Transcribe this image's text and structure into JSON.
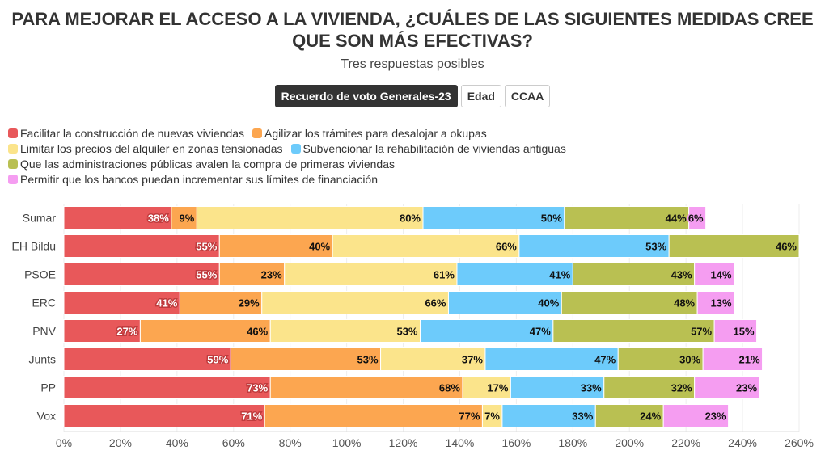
{
  "title_line1": "PARA MEJORAR EL ACCESO A LA VIVIENDA, ¿CUÁLES DE LAS SIGUIENTES MEDIDAS CREE",
  "title_line2": "QUE SON MÁS EFECTIVAS?",
  "subtitle": "Tres respuestas posibles",
  "buttons": [
    {
      "label": "Recuerdo de voto Generales-23",
      "active": true
    },
    {
      "label": "Edad",
      "active": false
    },
    {
      "label": "CCAA",
      "active": false
    }
  ],
  "chart_data": {
    "type": "bar",
    "orientation": "horizontal",
    "stacked": true,
    "categories": [
      "Sumar",
      "EH Bildu",
      "PSOE",
      "ERC",
      "PNV",
      "Junts",
      "PP",
      "Vox"
    ],
    "series": [
      {
        "name": "Facilitar la construcción de nuevas viviendas",
        "color": "#e8585a",
        "values": [
          38,
          55,
          55,
          41,
          27,
          59,
          73,
          71
        ]
      },
      {
        "name": "Agilizar los trámites para desalojar a okupas",
        "color": "#fca650",
        "values": [
          9,
          40,
          23,
          29,
          46,
          53,
          68,
          77
        ]
      },
      {
        "name": "Limitar los precios del alquiler en zonas tensionadas",
        "color": "#fbe48b",
        "values": [
          80,
          66,
          61,
          66,
          53,
          37,
          17,
          7
        ]
      },
      {
        "name": "Subvencionar la rehabilitación de viviendas antiguas",
        "color": "#6dcbfb",
        "values": [
          50,
          53,
          41,
          40,
          47,
          47,
          33,
          33
        ]
      },
      {
        "name": "Que las administraciones públicas avalen la compra de primeras viviendas",
        "color": "#b9c052",
        "values": [
          44,
          46,
          43,
          48,
          57,
          30,
          32,
          24
        ]
      },
      {
        "name": "Permitir que los bancos puedan incrementar sus límites de financiación",
        "color": "#f59df1",
        "values": [
          6,
          0,
          14,
          13,
          15,
          21,
          23,
          23
        ]
      }
    ],
    "xlim": [
      0,
      260
    ],
    "xticks": [
      "0%",
      "20%",
      "40%",
      "60%",
      "80%",
      "100%",
      "120%",
      "140%",
      "160%",
      "180%",
      "200%",
      "220%",
      "240%",
      "260%"
    ],
    "grid": true,
    "legend_position": "top-left"
  }
}
